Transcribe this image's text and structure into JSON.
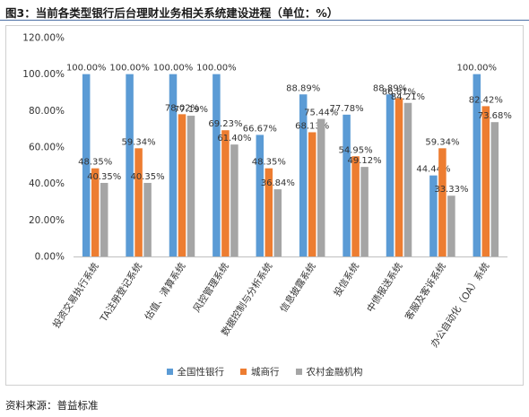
{
  "figure_title": "图3：当前各类型银行后台理财业务相关系统建设进程（单位：%）",
  "source": "资料来源：普益标准",
  "colors": {
    "national": "#5b9bd5",
    "city": "#ed7d31",
    "rural": "#a5a5a5",
    "axis": "#bfbfbf",
    "grid": "#d9d9d9",
    "label": "#333333"
  },
  "chart_data": {
    "type": "bar",
    "title": "",
    "xlabel": "",
    "ylabel": "",
    "ylim": [
      0,
      120
    ],
    "yticks": [
      "0.00%",
      "20.00%",
      "40.00%",
      "60.00%",
      "80.00%",
      "100.00%",
      "120.00%"
    ],
    "ytick_values": [
      0,
      20,
      40,
      60,
      80,
      100,
      120
    ],
    "grid": false,
    "legend_position": "bottom",
    "categories": [
      "投资交易执行系统",
      "TA注册登记系统",
      "估值、清算系统",
      "风控管理系统",
      "数据控制与分析系统",
      "信息披露系统",
      "投信系统",
      "中债报送系统",
      "客服及客诉系统",
      "办公自动化（OA）系统"
    ],
    "series": [
      {
        "name": "全国性银行",
        "color": "#5b9bd5",
        "values": [
          100.0,
          100.0,
          100.0,
          100.0,
          66.67,
          88.89,
          77.78,
          88.89,
          44.44,
          100.0
        ],
        "labels": [
          "100.00%",
          "100.00%",
          "100.00%",
          "100.00%",
          "66.67%",
          "88.89%",
          "77.78%",
          "88.89%",
          "44.44%",
          "100.00%"
        ]
      },
      {
        "name": "城商行",
        "color": "#ed7d31",
        "values": [
          48.35,
          59.34,
          78.02,
          69.23,
          48.35,
          68.13,
          54.95,
          86.81,
          59.34,
          82.42
        ],
        "labels": [
          "48.35%",
          "59.34%",
          "78.02%",
          "69.23%",
          "48.35%",
          "68.13%",
          "54.95%",
          "86.81%",
          "59.34%",
          "82.42%"
        ]
      },
      {
        "name": "农村金融机构",
        "color": "#a5a5a5",
        "values": [
          40.35,
          40.35,
          77.19,
          61.4,
          36.84,
          75.44,
          49.12,
          84.21,
          33.33,
          73.68
        ],
        "labels": [
          "40.35%",
          "40.35%",
          "77.19%",
          "61.40%",
          "36.84%",
          "75.44%",
          "49.12%",
          "84.21%",
          "33.33%",
          "73.68%"
        ]
      }
    ]
  }
}
